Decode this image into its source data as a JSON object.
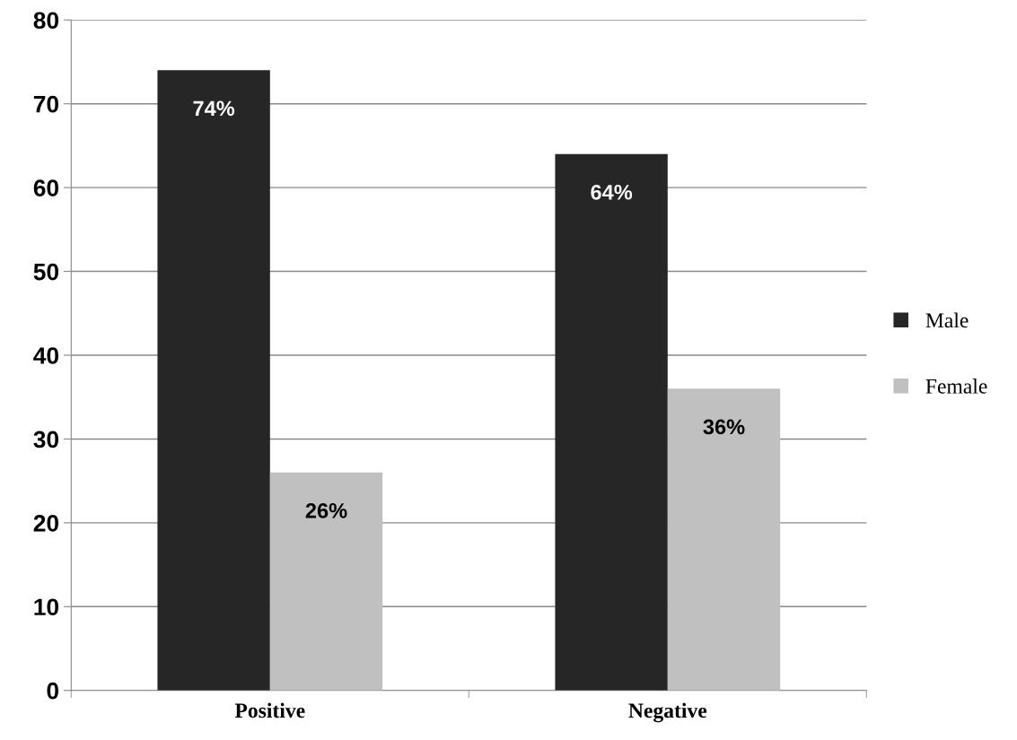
{
  "chart_data": {
    "type": "bar",
    "categories": [
      "Positive",
      "Negative"
    ],
    "series": [
      {
        "name": "Male",
        "color": "#262626",
        "values": [
          74,
          64
        ],
        "value_labels": [
          "74%",
          "64%"
        ]
      },
      {
        "name": "Female",
        "color": "#c0c0c0",
        "values": [
          26,
          36
        ],
        "value_labels": [
          "26%",
          "36%"
        ]
      }
    ],
    "ylim": [
      0,
      80
    ],
    "yticks": [
      0,
      10,
      20,
      30,
      40,
      50,
      60,
      70,
      80
    ],
    "grid": "y",
    "legend": "right"
  }
}
